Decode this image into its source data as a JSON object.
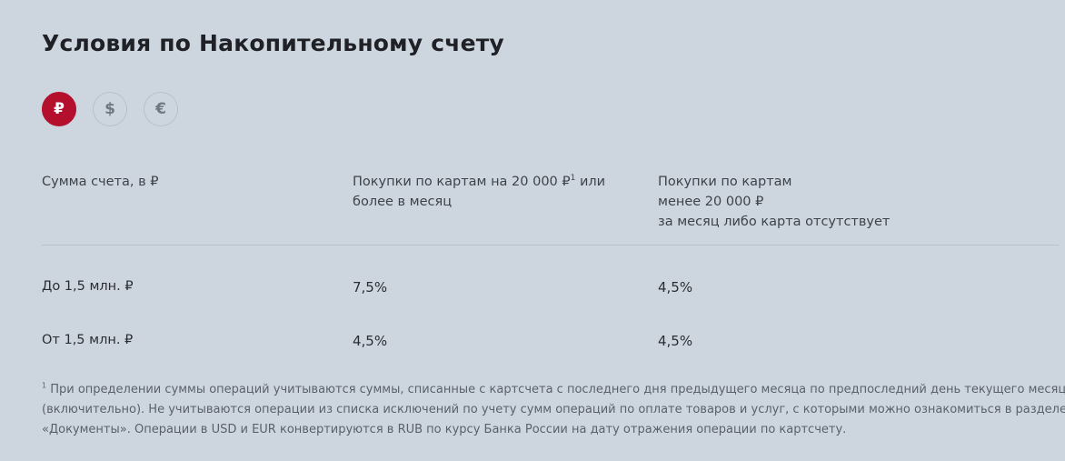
{
  "title": "Условия по Накопительному счету",
  "currencies": [
    {
      "symbol": "₽",
      "active": true
    },
    {
      "symbol": "$",
      "active": false
    },
    {
      "symbol": "€",
      "active": false
    }
  ],
  "colors": {
    "accent": "#b50f2e",
    "background": "#cdd6df"
  },
  "table": {
    "headers": {
      "col1": "Сумма счета, в ₽",
      "col2_line1": "Покупки по картам на 20 000 ₽",
      "col2_sup": "1",
      "col2_line1_tail": " или",
      "col2_line2": "более в месяц",
      "col3_line1": "Покупки по картам",
      "col3_line2": "менее 20 000 ₽",
      "col3_line3": "за месяц либо карта отсутствует"
    },
    "rows": [
      {
        "amount": "До 1,5 млн. ₽",
        "rate_high": "7,5%",
        "rate_low": "4,5%"
      },
      {
        "amount": "От 1,5 млн. ₽",
        "rate_high": "4,5%",
        "rate_low": "4,5%"
      }
    ]
  },
  "footnote": {
    "marker": "1",
    "line1": " При определении суммы операций учитываются суммы, списанные с картсчета с последнего дня предыдущего месяца по предпоследний день текущего месяца",
    "line2": "(включительно). Не учитываются операции из списка исключений по учету сумм операций по оплате товаров и услуг, с которыми можно ознакомиться в разделе",
    "line3": "«Документы». Операции в USD и EUR конвертируются в RUB по курсу Банка России на дату отражения операции по картсчету."
  }
}
